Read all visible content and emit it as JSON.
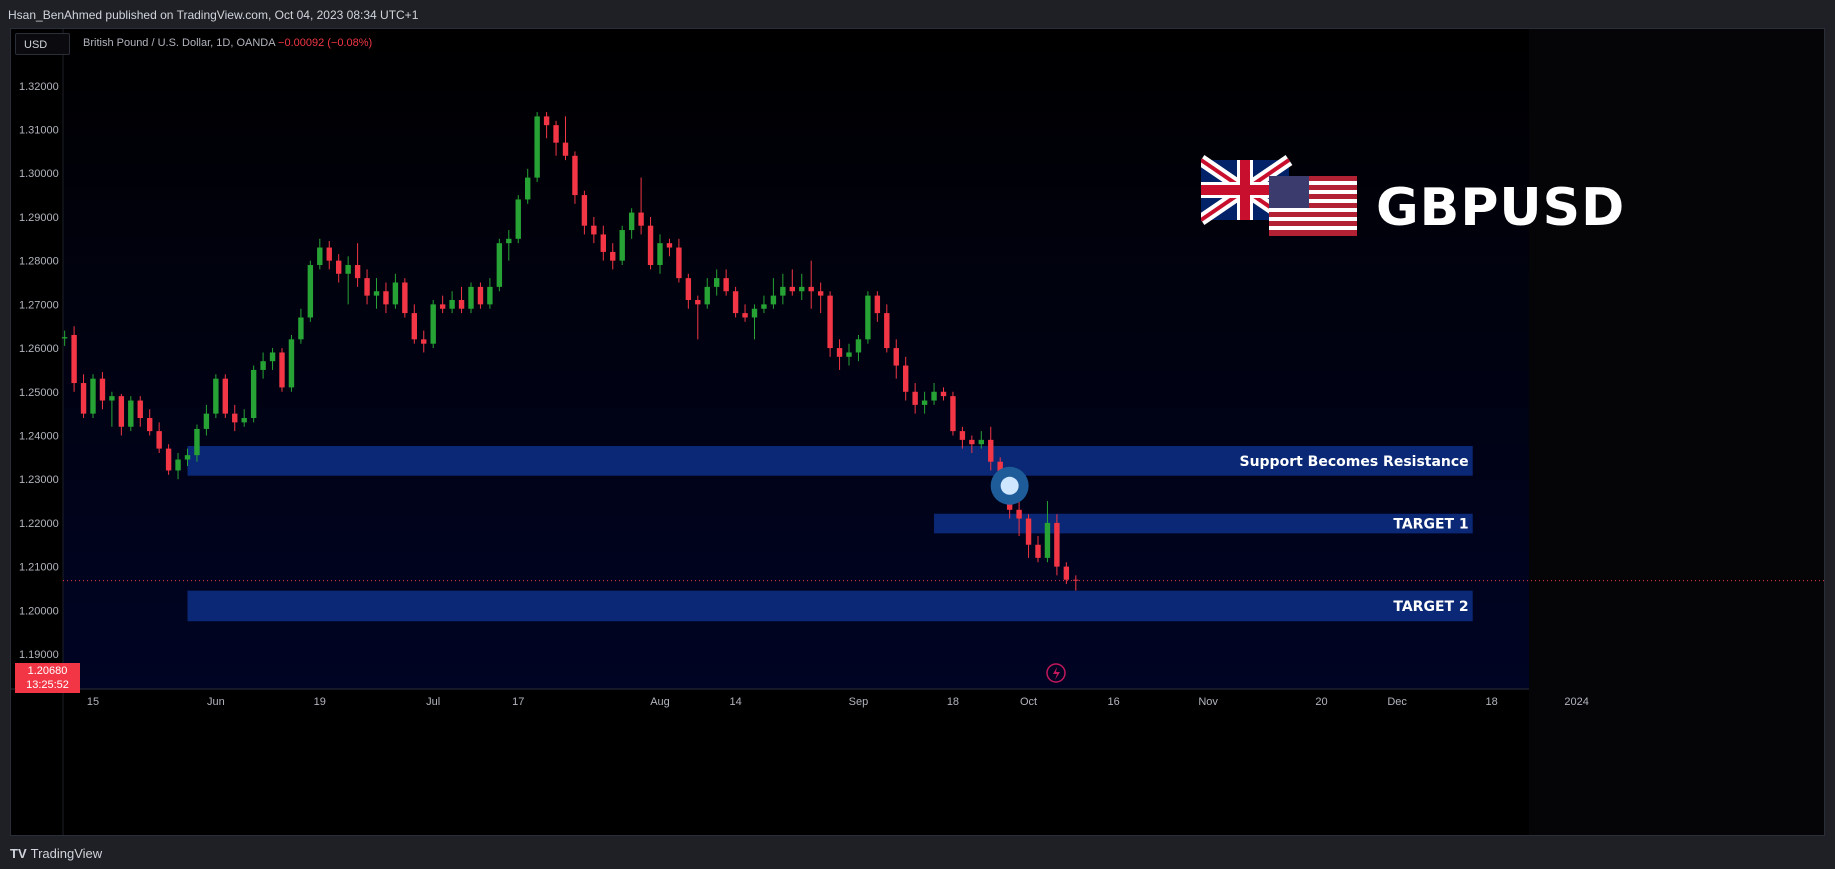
{
  "header": {
    "publish_line": "Hsan_BenAhmed published on TradingView.com, Oct 04, 2023 08:34 UTC+1"
  },
  "chart_header": {
    "currency": "USD",
    "symbol_desc": "British Pound / U.S. Dollar, 1D, OANDA",
    "change_text": "−0.00092 (−0.08%)"
  },
  "brand": {
    "ticker": "GBPUSD",
    "flag_left": "uk-flag",
    "flag_right": "us-flag"
  },
  "footer": {
    "logo_mark": "TV",
    "logo_text": "TradingView"
  },
  "colors": {
    "up": "#26a334",
    "down": "#f23645",
    "zone": "#0b2a7a",
    "background": "#000000",
    "price_line": "#f23645"
  },
  "price_tag": {
    "price": "1.20680",
    "countdown": "13:25:52"
  },
  "chart_data": {
    "type": "candlestick",
    "title": "British Pound / U.S. Dollar, 1D, OANDA",
    "y_tick_labels": [
      "1.32000",
      "1.31000",
      "1.30000",
      "1.29000",
      "1.28000",
      "1.27000",
      "1.26000",
      "1.25000",
      "1.24000",
      "1.23000",
      "1.22000",
      "1.21000",
      "1.20000",
      "1.19000"
    ],
    "y_ticks": [
      1.32,
      1.31,
      1.3,
      1.29,
      1.28,
      1.27,
      1.26,
      1.25,
      1.24,
      1.23,
      1.22,
      1.21,
      1.2,
      1.19
    ],
    "ylim": [
      1.182,
      1.333
    ],
    "x_tick_labels": [
      {
        "label": "15",
        "day": 0
      },
      {
        "label": "Jun",
        "day": 13
      },
      {
        "label": "19",
        "day": 24
      },
      {
        "label": "Jul",
        "day": 36
      },
      {
        "label": "17",
        "day": 45
      },
      {
        "label": "Aug",
        "day": 60
      },
      {
        "label": "14",
        "day": 68
      },
      {
        "label": "Sep",
        "day": 81
      },
      {
        "label": "18",
        "day": 91
      },
      {
        "label": "Oct",
        "day": 99
      },
      {
        "label": "16",
        "day": 108
      },
      {
        "label": "Nov",
        "day": 118
      },
      {
        "label": "20",
        "day": 130
      },
      {
        "label": "Dec",
        "day": 138
      },
      {
        "label": "18",
        "day": 148
      },
      {
        "label": "2024",
        "day": 157
      }
    ],
    "last_price": 1.2068,
    "zones": [
      {
        "label": "Support Becomes Resistance",
        "low": 1.2308,
        "high": 1.2376,
        "start_day": 10,
        "end_day": 146
      },
      {
        "label": "TARGET 1",
        "low": 1.2176,
        "high": 1.2221,
        "start_day": 89,
        "end_day": 146
      },
      {
        "label": "TARGET 2",
        "low": 1.1975,
        "high": 1.2045,
        "start_day": 10,
        "end_day": 146
      }
    ],
    "marker": {
      "day": 97,
      "price": 1.2285
    },
    "candles": [
      [
        -3,
        1.2622,
        1.2625,
        1.264,
        1.2605
      ],
      [
        -2,
        1.263,
        1.252,
        1.265,
        1.25
      ],
      [
        -1,
        1.252,
        1.245,
        1.254,
        1.244
      ],
      [
        0,
        1.245,
        1.253,
        1.254,
        1.244
      ],
      [
        1,
        1.253,
        1.248,
        1.2545,
        1.246
      ],
      [
        2,
        1.248,
        1.249,
        1.25,
        1.242
      ],
      [
        3,
        1.249,
        1.242,
        1.2495,
        1.24
      ],
      [
        4,
        1.242,
        1.248,
        1.249,
        1.241
      ],
      [
        5,
        1.248,
        1.244,
        1.249,
        1.242
      ],
      [
        6,
        1.244,
        1.241,
        1.246,
        1.24
      ],
      [
        7,
        1.241,
        1.237,
        1.243,
        1.236
      ],
      [
        8,
        1.237,
        1.232,
        1.238,
        1.231
      ],
      [
        9,
        1.232,
        1.2345,
        1.236,
        1.23
      ],
      [
        10,
        1.2345,
        1.2355,
        1.237,
        1.233
      ],
      [
        11,
        1.2355,
        1.2415,
        1.2425,
        1.234
      ],
      [
        12,
        1.2415,
        1.245,
        1.247,
        1.24
      ],
      [
        13,
        1.245,
        1.253,
        1.254,
        1.244
      ],
      [
        14,
        1.253,
        1.245,
        1.254,
        1.244
      ],
      [
        15,
        1.245,
        1.243,
        1.247,
        1.241
      ],
      [
        16,
        1.243,
        1.244,
        1.246,
        1.242
      ],
      [
        17,
        1.244,
        1.255,
        1.256,
        1.243
      ],
      [
        18,
        1.255,
        1.257,
        1.259,
        1.253
      ],
      [
        19,
        1.257,
        1.259,
        1.26,
        1.255
      ],
      [
        20,
        1.259,
        1.251,
        1.26,
        1.25
      ],
      [
        21,
        1.251,
        1.262,
        1.263,
        1.25
      ],
      [
        22,
        1.262,
        1.267,
        1.269,
        1.261
      ],
      [
        23,
        1.267,
        1.279,
        1.28,
        1.266
      ],
      [
        24,
        1.279,
        1.283,
        1.285,
        1.278
      ],
      [
        25,
        1.283,
        1.28,
        1.2845,
        1.278
      ],
      [
        26,
        1.28,
        1.277,
        1.2815,
        1.275
      ],
      [
        27,
        1.277,
        1.279,
        1.281,
        1.27
      ],
      [
        28,
        1.279,
        1.276,
        1.284,
        1.274
      ],
      [
        29,
        1.276,
        1.272,
        1.278,
        1.27
      ],
      [
        30,
        1.272,
        1.273,
        1.276,
        1.269
      ],
      [
        31,
        1.273,
        1.27,
        1.275,
        1.268
      ],
      [
        32,
        1.27,
        1.275,
        1.277,
        1.269
      ],
      [
        33,
        1.275,
        1.268,
        1.276,
        1.267
      ],
      [
        34,
        1.268,
        1.262,
        1.27,
        1.261
      ],
      [
        35,
        1.262,
        1.261,
        1.264,
        1.259
      ],
      [
        36,
        1.261,
        1.27,
        1.271,
        1.26
      ],
      [
        37,
        1.27,
        1.269,
        1.272,
        1.268
      ],
      [
        38,
        1.269,
        1.271,
        1.273,
        1.268
      ],
      [
        39,
        1.271,
        1.269,
        1.274,
        1.268
      ],
      [
        40,
        1.269,
        1.274,
        1.275,
        1.268
      ],
      [
        41,
        1.274,
        1.27,
        1.275,
        1.269
      ],
      [
        42,
        1.27,
        1.274,
        1.276,
        1.269
      ],
      [
        43,
        1.274,
        1.284,
        1.285,
        1.273
      ],
      [
        44,
        1.284,
        1.285,
        1.287,
        1.28
      ],
      [
        45,
        1.285,
        1.294,
        1.295,
        1.284
      ],
      [
        46,
        1.294,
        1.299,
        1.301,
        1.293
      ],
      [
        47,
        1.299,
        1.313,
        1.314,
        1.298
      ],
      [
        48,
        1.313,
        1.311,
        1.314,
        1.308
      ],
      [
        49,
        1.311,
        1.307,
        1.312,
        1.304
      ],
      [
        50,
        1.307,
        1.304,
        1.313,
        1.303
      ],
      [
        51,
        1.304,
        1.295,
        1.305,
        1.293
      ],
      [
        52,
        1.295,
        1.288,
        1.296,
        1.286
      ],
      [
        53,
        1.288,
        1.286,
        1.29,
        1.284
      ],
      [
        54,
        1.286,
        1.282,
        1.288,
        1.28
      ],
      [
        55,
        1.282,
        1.28,
        1.284,
        1.278
      ],
      [
        56,
        1.28,
        1.287,
        1.288,
        1.279
      ],
      [
        57,
        1.287,
        1.291,
        1.292,
        1.285
      ],
      [
        58,
        1.291,
        1.288,
        1.299,
        1.286
      ],
      [
        59,
        1.288,
        1.279,
        1.29,
        1.278
      ],
      [
        60,
        1.279,
        1.284,
        1.286,
        1.277
      ],
      [
        61,
        1.284,
        1.283,
        1.285,
        1.281
      ],
      [
        62,
        1.283,
        1.276,
        1.285,
        1.275
      ],
      [
        63,
        1.276,
        1.271,
        1.277,
        1.269
      ],
      [
        64,
        1.271,
        1.27,
        1.272,
        1.262
      ],
      [
        65,
        1.27,
        1.274,
        1.276,
        1.269
      ],
      [
        66,
        1.274,
        1.276,
        1.278,
        1.272
      ],
      [
        67,
        1.276,
        1.273,
        1.278,
        1.272
      ],
      [
        68,
        1.273,
        1.268,
        1.274,
        1.267
      ],
      [
        69,
        1.268,
        1.267,
        1.27,
        1.266
      ],
      [
        70,
        1.267,
        1.269,
        1.27,
        1.262
      ],
      [
        71,
        1.269,
        1.27,
        1.272,
        1.268
      ],
      [
        72,
        1.27,
        1.272,
        1.276,
        1.269
      ],
      [
        73,
        1.272,
        1.274,
        1.277,
        1.27
      ],
      [
        74,
        1.274,
        1.273,
        1.278,
        1.272
      ],
      [
        75,
        1.273,
        1.274,
        1.277,
        1.271
      ],
      [
        76,
        1.274,
        1.273,
        1.28,
        1.269
      ],
      [
        77,
        1.273,
        1.272,
        1.275,
        1.268
      ],
      [
        78,
        1.272,
        1.26,
        1.273,
        1.258
      ],
      [
        79,
        1.26,
        1.258,
        1.262,
        1.255
      ],
      [
        80,
        1.258,
        1.259,
        1.261,
        1.256
      ],
      [
        81,
        1.259,
        1.262,
        1.263,
        1.257
      ],
      [
        82,
        1.262,
        1.272,
        1.273,
        1.261
      ],
      [
        83,
        1.272,
        1.268,
        1.273,
        1.266
      ],
      [
        84,
        1.268,
        1.26,
        1.27,
        1.259
      ],
      [
        85,
        1.26,
        1.256,
        1.262,
        1.253
      ],
      [
        86,
        1.256,
        1.25,
        1.258,
        1.248
      ],
      [
        87,
        1.25,
        1.247,
        1.252,
        1.245
      ],
      [
        88,
        1.247,
        1.248,
        1.25,
        1.245
      ],
      [
        89,
        1.248,
        1.25,
        1.252,
        1.247
      ],
      [
        90,
        1.25,
        1.249,
        1.251,
        1.248
      ],
      [
        91,
        1.249,
        1.241,
        1.25,
        1.24
      ],
      [
        92,
        1.241,
        1.239,
        1.242,
        1.237
      ],
      [
        93,
        1.239,
        1.238,
        1.24,
        1.236
      ],
      [
        94,
        1.238,
        1.239,
        1.241,
        1.237
      ],
      [
        95,
        1.239,
        1.234,
        1.242,
        1.232
      ],
      [
        96,
        1.234,
        1.228,
        1.235,
        1.226
      ],
      [
        97,
        1.228,
        1.223,
        1.229,
        1.221
      ],
      [
        98,
        1.223,
        1.221,
        1.225,
        1.217
      ],
      [
        99,
        1.221,
        1.215,
        1.222,
        1.212
      ],
      [
        100,
        1.215,
        1.212,
        1.217,
        1.211
      ],
      [
        101,
        1.212,
        1.22,
        1.225,
        1.211
      ],
      [
        102,
        1.22,
        1.21,
        1.222,
        1.208
      ],
      [
        103,
        1.21,
        1.207,
        1.211,
        1.206
      ],
      [
        104,
        1.207,
        1.2068,
        1.208,
        1.2045
      ]
    ]
  }
}
